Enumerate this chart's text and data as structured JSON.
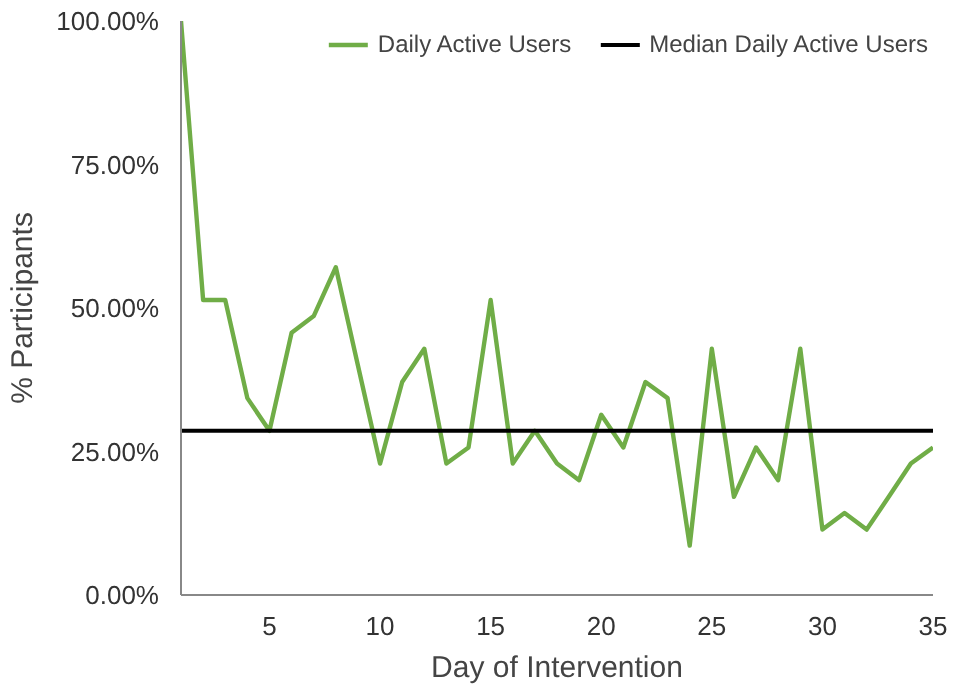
{
  "chart_data": {
    "type": "line",
    "xlabel": "Day of Intervention",
    "ylabel": "% Participants",
    "x": [
      1,
      2,
      3,
      4,
      5,
      6,
      7,
      8,
      9,
      10,
      11,
      12,
      13,
      14,
      15,
      16,
      17,
      18,
      19,
      20,
      21,
      22,
      23,
      24,
      25,
      26,
      27,
      28,
      29,
      30,
      31,
      32,
      33,
      34,
      35
    ],
    "series": [
      {
        "name": "Daily Active Users",
        "color": "#70ad47",
        "values": [
          100,
          51.4,
          51.4,
          34.3,
          28.6,
          45.7,
          48.6,
          57.1,
          40,
          22.9,
          37.1,
          42.9,
          22.9,
          25.7,
          51.4,
          22.9,
          28.6,
          22.9,
          20,
          31.4,
          25.7,
          37.1,
          34.3,
          8.6,
          42.9,
          17.1,
          25.7,
          20,
          42.9,
          11.4,
          14.3,
          11.4,
          17.1,
          22.9,
          25.7
        ]
      }
    ],
    "ref_lines": [
      {
        "axis": "y",
        "value": 28.6,
        "label": "Median Daily Active Users",
        "color": "#000000"
      }
    ],
    "xlim": [
      1,
      35
    ],
    "xticks": [
      5,
      10,
      15,
      20,
      25,
      30,
      35
    ],
    "ylim": [
      0,
      100
    ],
    "yticks": [
      {
        "value": 0,
        "label": "0.00%"
      },
      {
        "value": 25,
        "label": "25.00%"
      },
      {
        "value": 50,
        "label": "50.00%"
      },
      {
        "value": 75,
        "label": "75.00%"
      },
      {
        "value": 100,
        "label": "100.00%"
      }
    ],
    "grid": false,
    "legend": "top",
    "marker": "none",
    "line_style": "solid"
  }
}
